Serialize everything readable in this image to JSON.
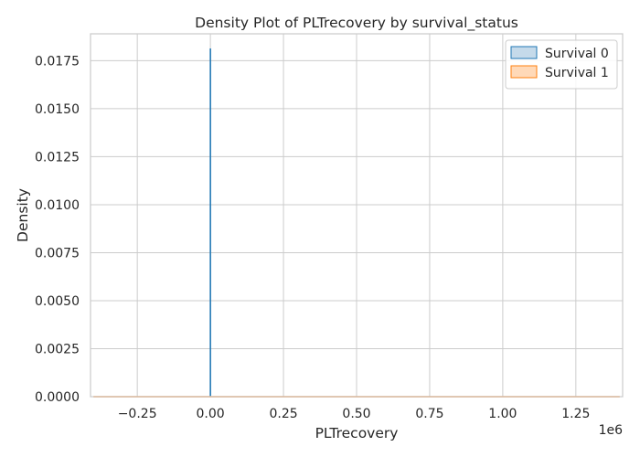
{
  "chart_data": {
    "type": "area",
    "title": "Density Plot of PLTrecovery by survival_status",
    "xlabel": "PLTrecovery",
    "ylabel": "Density",
    "x_offset_label": "1e6",
    "x_scale": 1000000,
    "xlim": [
      -410000,
      1410000
    ],
    "ylim": [
      0,
      0.0189
    ],
    "xticks": [
      -0.25,
      0.0,
      0.25,
      0.5,
      0.75,
      1.0,
      1.25
    ],
    "xtick_labels": [
      "−0.25",
      "0.00",
      "0.25",
      "0.50",
      "0.75",
      "1.00",
      "1.25"
    ],
    "yticks": [
      0.0,
      0.0025,
      0.005,
      0.0075,
      0.01,
      0.0125,
      0.015,
      0.0175
    ],
    "ytick_labels": [
      "0.0000",
      "0.0025",
      "0.0050",
      "0.0075",
      "0.0100",
      "0.0125",
      "0.0150",
      "0.0175"
    ],
    "grid": true,
    "legend_position": "top-right",
    "series": [
      {
        "name": "Survival 0",
        "color": "#1f77b4",
        "fill": "#c5daea",
        "points": [
          [
            0,
            0.0
          ],
          [
            0,
            0.0181
          ],
          [
            200,
            0.0181
          ],
          [
            200,
            0.0
          ]
        ]
      },
      {
        "name": "Survival 1",
        "color": "#ff7f0e",
        "fill": "#ffd9b8",
        "points": [
          [
            -400000,
            0.0
          ],
          [
            1400000,
            0.0
          ]
        ]
      }
    ]
  }
}
